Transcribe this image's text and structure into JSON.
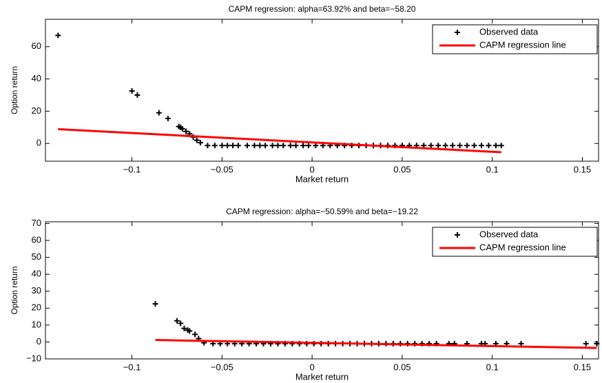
{
  "chart_data": [
    {
      "type": "scatter",
      "title": "CAPM regression: alpha=63.92% and beta=−58.20",
      "x_label": "Market return",
      "y_label": "Option return",
      "xlim": [
        -0.148,
        0.159
      ],
      "ylim": [
        -11,
        77
      ],
      "xticks": [
        {
          "value": -0.1,
          "label": "−0.1"
        },
        {
          "value": -0.05,
          "label": "−0.05"
        },
        0,
        0.05,
        0.1,
        0.15
      ],
      "yticks": [
        0,
        20,
        40,
        60
      ],
      "legend": "northeast",
      "series": [
        {
          "name": "Observed data",
          "mode": "markers",
          "color": "#000000",
          "x": [
            -0.141,
            -0.1,
            -0.097,
            -0.085,
            -0.08,
            -0.074,
            -0.073,
            -0.072,
            -0.07,
            -0.068,
            -0.066,
            -0.064,
            -0.062,
            -0.058,
            -0.054,
            -0.05,
            -0.047,
            -0.044,
            -0.041,
            -0.036,
            -0.032,
            -0.029,
            -0.026,
            -0.022,
            -0.019,
            -0.016,
            -0.012,
            -0.009,
            -0.005,
            -0.002,
            0.002,
            0.006,
            0.01,
            0.014,
            0.018,
            0.022,
            0.026,
            0.03,
            0.034,
            0.038,
            0.042,
            0.046,
            0.05,
            0.054,
            0.058,
            0.062,
            0.066,
            0.07,
            0.074,
            0.078,
            0.082,
            0.086,
            0.09,
            0.094,
            0.098,
            0.102,
            0.105
          ],
          "values": [
            67,
            32.5,
            30,
            19,
            15.5,
            10.5,
            10,
            9,
            7.5,
            6,
            4,
            2,
            0.5,
            -1.3,
            -1.3,
            -1.3,
            -1.3,
            -1.3,
            -1.3,
            -1.3,
            -1.3,
            -1.3,
            -1.3,
            -1.3,
            -1.3,
            -1.3,
            -1.3,
            -1.3,
            -1.3,
            -1.3,
            -1.3,
            -1.3,
            -1.3,
            -1.3,
            -1.3,
            -1.3,
            -1.3,
            -1.3,
            -1.3,
            -1.3,
            -1.3,
            -1.3,
            -1.3,
            -1.3,
            -1.3,
            -1.3,
            -1.3,
            -1.3,
            -1.3,
            -1.3,
            -1.3,
            -1.3,
            -1.3,
            -1.3,
            -1.3,
            -1.3,
            -1.3
          ]
        },
        {
          "name": "CAPM regression line",
          "mode": "line",
          "color": "#ff0000",
          "x": [
            -0.141,
            0.105
          ],
          "values": [
            8.85,
            -5.47
          ]
        }
      ]
    },
    {
      "type": "scatter",
      "title": "CAPM regression: alpha=−50.59% and beta=−19.22",
      "x_label": "Market return",
      "y_label": "Option return",
      "xlim": [
        -0.148,
        0.159
      ],
      "ylim": [
        -10,
        71
      ],
      "xticks": [
        {
          "value": -0.1,
          "label": "−0.1"
        },
        {
          "value": -0.05,
          "label": "−0.05"
        },
        0,
        0.05,
        0.1,
        0.15
      ],
      "yticks": [
        {
          "value": -10,
          "label": "−10"
        },
        0,
        10,
        20,
        30,
        40,
        50,
        60,
        70
      ],
      "legend": "northeast",
      "series": [
        {
          "name": "Observed data",
          "mode": "markers",
          "color": "#000000",
          "x": [
            -0.087,
            -0.075,
            -0.073,
            -0.071,
            -0.069,
            -0.068,
            -0.065,
            -0.063,
            -0.06,
            -0.055,
            -0.051,
            -0.047,
            -0.043,
            -0.039,
            -0.035,
            -0.031,
            -0.027,
            -0.023,
            -0.019,
            -0.015,
            -0.011,
            -0.007,
            -0.003,
            0.001,
            0.005,
            0.009,
            0.013,
            0.017,
            0.021,
            0.025,
            0.029,
            0.033,
            0.037,
            0.041,
            0.045,
            0.049,
            0.053,
            0.057,
            0.061,
            0.065,
            0.069,
            0.076,
            0.079,
            0.086,
            0.094,
            0.096,
            0.102,
            0.108,
            0.116,
            0.152,
            0.158
          ],
          "values": [
            22.5,
            12.5,
            11,
            8,
            7,
            6.5,
            4.5,
            2,
            -0.5,
            -1,
            -1,
            -1,
            -1,
            -1,
            -1,
            -1,
            -1,
            -1,
            -1,
            -1,
            -1,
            -1,
            -1,
            -1,
            -1,
            -1,
            -1,
            -1,
            -1,
            -1,
            -1,
            -1,
            -1,
            -1,
            -1,
            -1,
            -1,
            -1,
            -1,
            -1,
            -1,
            -1,
            -1,
            -1,
            -1,
            -1,
            -1,
            -1,
            -1,
            -1,
            -1
          ]
        },
        {
          "name": "CAPM regression line",
          "mode": "line",
          "color": "#ff0000",
          "x": [
            -0.087,
            0.158
          ],
          "values": [
            1.17,
            -3.54
          ]
        }
      ]
    }
  ]
}
